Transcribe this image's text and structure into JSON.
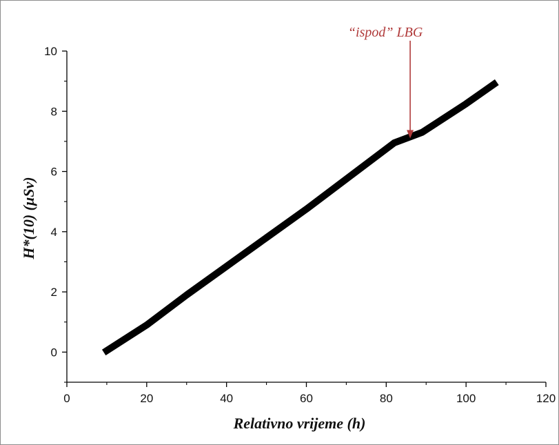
{
  "chart_data": {
    "type": "line",
    "title": "",
    "xlabel": "Relativno vrijeme (h)",
    "ylabel": "H*(10)  (μSv)",
    "xlim": [
      0,
      120
    ],
    "ylim": [
      -1,
      10
    ],
    "x_ticks": [
      0,
      20,
      40,
      60,
      80,
      100,
      120
    ],
    "y_ticks": [
      0,
      2,
      4,
      6,
      8,
      10
    ],
    "x_tick_labels": [
      "0",
      "20",
      "40",
      "60",
      "80",
      "100",
      "120"
    ],
    "y_tick_labels": [
      "0",
      "2",
      "4",
      "6",
      "8",
      "10"
    ],
    "grid": false,
    "legend": "none",
    "series": [
      {
        "color": "#000000",
        "points": [
          [
            10,
            0.05
          ],
          [
            20,
            0.9
          ],
          [
            30,
            1.9
          ],
          [
            40,
            2.85
          ],
          [
            50,
            3.8
          ],
          [
            60,
            4.75
          ],
          [
            70,
            5.75
          ],
          [
            82,
            6.95
          ],
          [
            89,
            7.3
          ],
          [
            100,
            8.25
          ],
          [
            107,
            8.9
          ]
        ]
      }
    ],
    "annotation": {
      "text": "“ispod” LBG",
      "color": "#b03a3a",
      "arrow_target": [
        86,
        7.1
      ]
    }
  }
}
